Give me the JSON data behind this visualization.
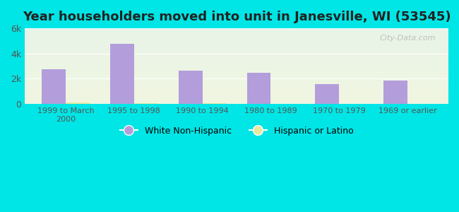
{
  "title": "Year householders moved into unit in Janesville, WI (53545)",
  "categories": [
    "1999 to March\n2000",
    "1995 to 1998",
    "1990 to 1994",
    "1980 to 1989",
    "1970 to 1979",
    "1969 or earlier"
  ],
  "white_values": [
    2750,
    4750,
    2650,
    2450,
    1600,
    1850
  ],
  "hispanic_values": [
    120,
    80,
    50,
    30,
    30,
    30
  ],
  "white_color": "#b39ddb",
  "hispanic_color": "#e8e8a0",
  "background_outer": "#00e5e5",
  "ylim": [
    0,
    6000
  ],
  "yticks": [
    0,
    2000,
    4000,
    6000
  ],
  "ytick_labels": [
    "0",
    "2k",
    "4k",
    "6k"
  ],
  "bar_width": 0.35,
  "watermark": "City-Data.com",
  "legend_label_white": "White Non-Hispanic",
  "legend_label_hispanic": "Hispanic or Latino"
}
